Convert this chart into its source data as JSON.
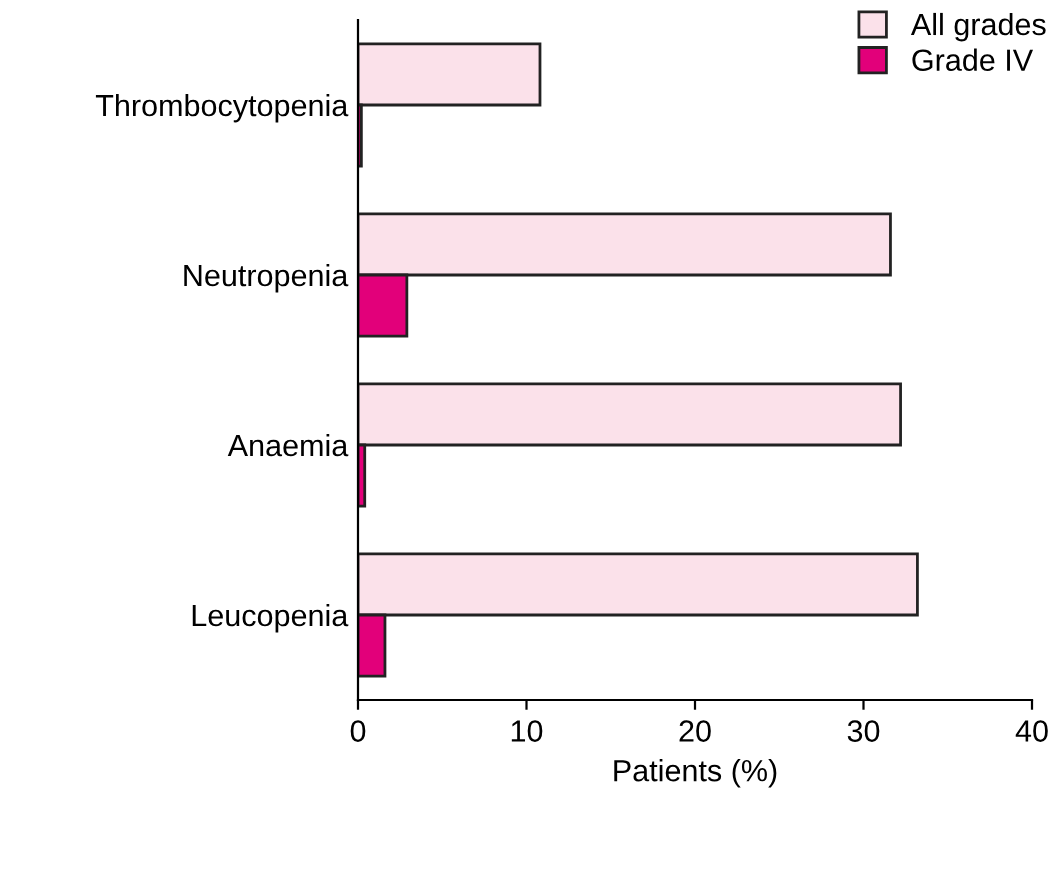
{
  "chart_data": {
    "type": "bar",
    "orientation": "horizontal",
    "xlabel": "Patients (%)",
    "categories": [
      "Thrombocytopenia",
      "Neutropenia",
      "Anaemia",
      "Leucopenia"
    ],
    "series": [
      {
        "name": "All grades",
        "color": "#fbe1ea",
        "values": [
          10.8,
          31.6,
          32.2,
          33.2
        ]
      },
      {
        "name": "Grade IV",
        "color": "#e2007a",
        "values": [
          0.2,
          2.9,
          0.4,
          1.6
        ]
      }
    ],
    "xlim": [
      0,
      40
    ],
    "xticks": [
      0,
      10,
      20,
      30,
      40
    ],
    "grid": false,
    "legend": "top right"
  }
}
